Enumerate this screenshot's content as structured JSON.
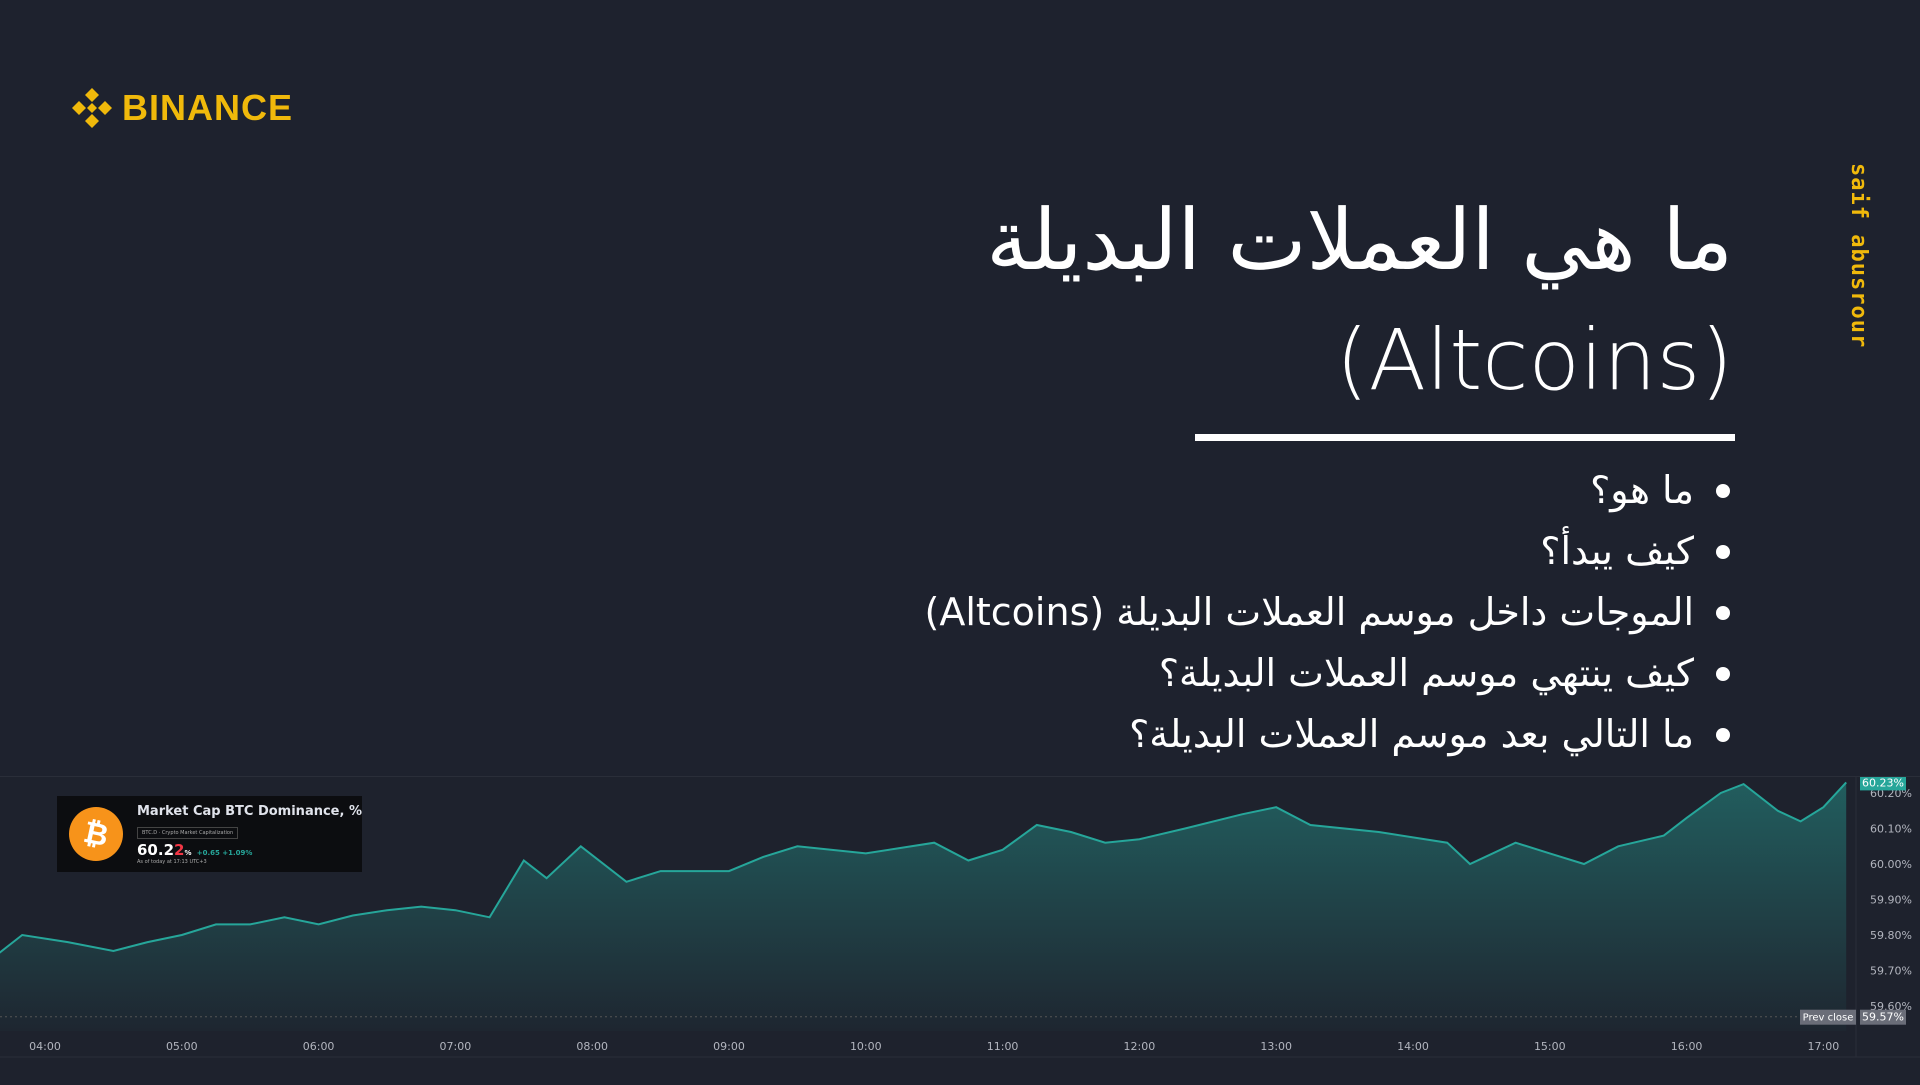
{
  "brand": {
    "name": "BINANCE",
    "color": "#f0b90b"
  },
  "title": {
    "line1": "ما هي  العملات البديلة",
    "line2": "(Altcoins)"
  },
  "bullets": [
    "ما هو؟",
    "كيف يبدأ؟",
    "الموجات داخل موسم العملات البديلة (Altcoins)",
    "كيف ينتهي موسم العملات البديلة؟",
    "ما التالي بعد موسم العملات البديلة؟"
  ],
  "author": "saif abusrour",
  "chart_card": {
    "title": "Market Cap BTC Dominance, %",
    "symbol": "BTC.D · Crypto Market Capitalization",
    "value_main": "60.2",
    "value_last": "2",
    "unit": "%",
    "change": "+0.65 +1.09%",
    "as_of": "As of today at 17:13 UTC+3"
  },
  "chart_data": {
    "type": "area",
    "color": "#26a69a",
    "x_ticks": [
      "04:00",
      "05:00",
      "06:00",
      "07:00",
      "08:00",
      "09:00",
      "10:00",
      "11:00",
      "12:00",
      "13:00",
      "14:00",
      "15:00",
      "16:00",
      "17:00"
    ],
    "y_ticks": [
      "60.20%",
      "60.10%",
      "60.00%",
      "59.90%",
      "59.80%",
      "59.70%",
      "59.60%"
    ],
    "ylim": [
      59.57,
      60.23
    ],
    "last_value_label": "60.23%",
    "prev_close_label": "Prev close",
    "prev_close_value": "59.57%",
    "points": [
      [
        "03:40",
        59.75
      ],
      [
        "03:50",
        59.8
      ],
      [
        "04:10",
        59.78
      ],
      [
        "04:30",
        59.755
      ],
      [
        "04:45",
        59.78
      ],
      [
        "05:00",
        59.8
      ],
      [
        "05:15",
        59.83
      ],
      [
        "05:30",
        59.83
      ],
      [
        "05:45",
        59.85
      ],
      [
        "06:00",
        59.83
      ],
      [
        "06:15",
        59.855
      ],
      [
        "06:30",
        59.87
      ],
      [
        "06:45",
        59.88
      ],
      [
        "07:00",
        59.87
      ],
      [
        "07:15",
        59.85
      ],
      [
        "07:30",
        60.01
      ],
      [
        "07:40",
        59.96
      ],
      [
        "07:55",
        60.05
      ],
      [
        "08:15",
        59.95
      ],
      [
        "08:30",
        59.98
      ],
      [
        "09:00",
        59.98
      ],
      [
        "09:15",
        60.02
      ],
      [
        "09:30",
        60.05
      ],
      [
        "10:00",
        60.03
      ],
      [
        "10:30",
        60.06
      ],
      [
        "10:45",
        60.01
      ],
      [
        "11:00",
        60.04
      ],
      [
        "11:15",
        60.11
      ],
      [
        "11:30",
        60.09
      ],
      [
        "11:45",
        60.06
      ],
      [
        "12:00",
        60.07
      ],
      [
        "12:20",
        60.1
      ],
      [
        "12:45",
        60.14
      ],
      [
        "13:00",
        60.16
      ],
      [
        "13:15",
        60.11
      ],
      [
        "13:45",
        60.09
      ],
      [
        "14:15",
        60.06
      ],
      [
        "14:25",
        60.0
      ],
      [
        "14:45",
        60.06
      ],
      [
        "15:00",
        60.03
      ],
      [
        "15:15",
        60.0
      ],
      [
        "15:30",
        60.05
      ],
      [
        "15:50",
        60.08
      ],
      [
        "16:00",
        60.13
      ],
      [
        "16:15",
        60.2
      ],
      [
        "16:25",
        60.225
      ],
      [
        "16:40",
        60.15
      ],
      [
        "16:50",
        60.12
      ],
      [
        "17:00",
        60.16
      ],
      [
        "17:10",
        60.23
      ]
    ]
  }
}
